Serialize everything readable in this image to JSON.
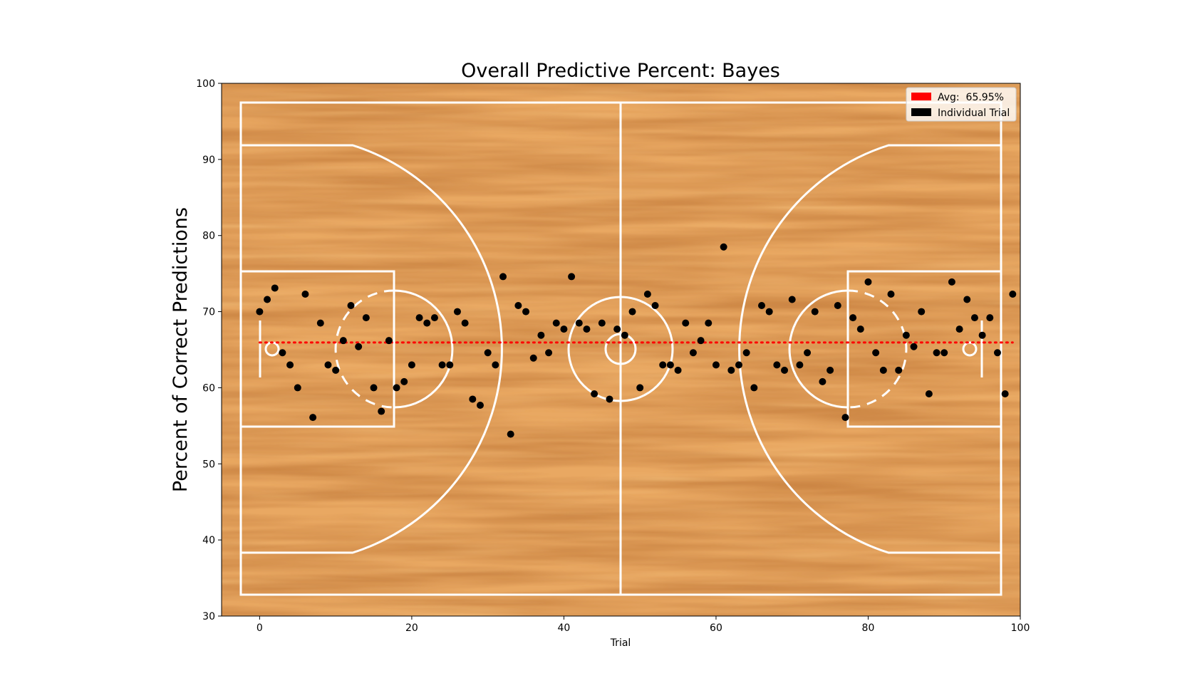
{
  "chart_data": {
    "type": "scatter",
    "title": "Overall Predictive Percent: Bayes",
    "xlabel": "Trial",
    "ylabel": "Percent of Correct Predictions",
    "xlim": [
      -5,
      100
    ],
    "ylim": [
      30,
      100
    ],
    "xticks": [
      0,
      20,
      40,
      60,
      80,
      100
    ],
    "yticks": [
      30,
      40,
      50,
      60,
      70,
      80,
      90,
      100
    ],
    "average": 65.95,
    "legend_position": "upper-right",
    "background": "basketball-court",
    "series": [
      {
        "name": "Individual Trial",
        "color": "#000000",
        "x": [
          0,
          1,
          2,
          3,
          4,
          5,
          6,
          7,
          8,
          9,
          10,
          11,
          12,
          13,
          14,
          15,
          16,
          17,
          18,
          19,
          20,
          21,
          22,
          23,
          24,
          25,
          26,
          27,
          28,
          29,
          30,
          31,
          32,
          33,
          34,
          35,
          36,
          37,
          38,
          39,
          40,
          41,
          42,
          43,
          44,
          45,
          46,
          47,
          48,
          49,
          50,
          51,
          52,
          53,
          54,
          55,
          56,
          57,
          58,
          59,
          60,
          61,
          62,
          63,
          64,
          65,
          66,
          67,
          68,
          69,
          70,
          71,
          72,
          73,
          74,
          75,
          76,
          77,
          78,
          79,
          80,
          81,
          82,
          83,
          84,
          85,
          86,
          87,
          88,
          89,
          90,
          91,
          92,
          93,
          94,
          95,
          96,
          97,
          98,
          99
        ],
        "y": [
          70.0,
          71.6,
          73.1,
          64.6,
          63.0,
          60.0,
          72.3,
          56.1,
          68.5,
          63.0,
          62.3,
          66.2,
          70.8,
          65.4,
          69.2,
          60.0,
          56.9,
          66.2,
          60.0,
          60.8,
          63.0,
          69.2,
          68.5,
          69.2,
          63.0,
          63.0,
          70.0,
          68.5,
          58.5,
          57.7,
          64.6,
          63.0,
          74.6,
          53.9,
          70.8,
          70.0,
          63.9,
          66.9,
          64.6,
          68.5,
          67.7,
          74.6,
          68.5,
          67.7,
          59.2,
          68.5,
          58.5,
          67.7,
          66.9,
          70.0,
          60.0,
          72.3,
          70.8,
          63.0,
          63.0,
          62.3,
          68.5,
          64.6,
          66.2,
          68.5,
          63.0,
          78.5,
          62.3,
          63.0,
          64.6,
          60.0,
          70.8,
          70.0,
          63.0,
          62.3,
          71.6,
          63.0,
          64.6,
          70.0,
          60.8,
          62.3,
          70.8,
          56.1,
          69.2,
          67.7,
          73.9,
          64.6,
          62.3,
          72.3,
          62.3,
          66.9,
          65.4,
          70.0,
          59.2,
          64.6,
          64.6,
          73.9,
          67.7,
          71.6,
          69.2,
          66.9,
          69.2,
          64.6,
          59.2,
          72.3
        ]
      },
      {
        "name": "Avg:  65.95%",
        "color": "#ff0000"
      }
    ]
  }
}
